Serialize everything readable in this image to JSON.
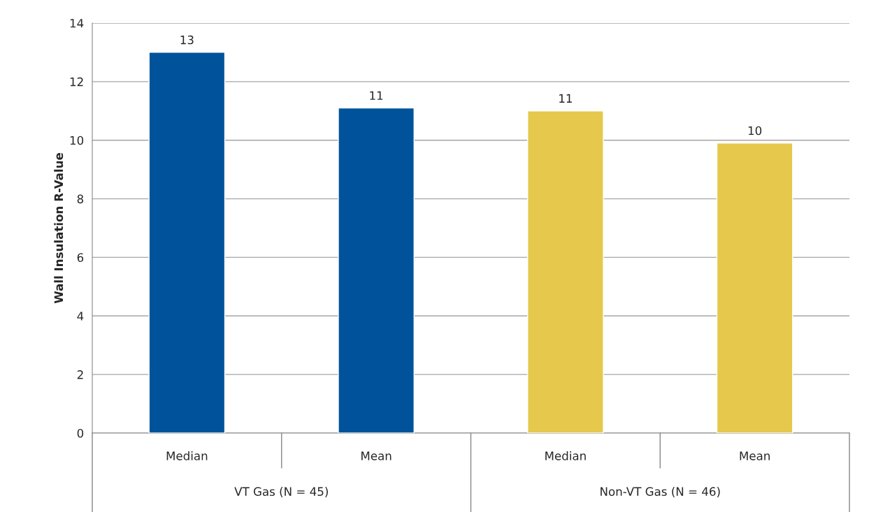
{
  "chart_data": {
    "type": "bar",
    "ylabel": "Wall Insulation R-Value",
    "categories": [
      "Median",
      "Mean",
      "Median",
      "Mean"
    ],
    "values": [
      13,
      11.1,
      11,
      9.9
    ],
    "colors": [
      "#00539b",
      "#00539b",
      "#e5c84c",
      "#e5c84c"
    ],
    "value_labels": [
      "13",
      "11",
      "11",
      "10"
    ],
    "annotations": [
      "VT Gas (N = 45)",
      "Non-VT Gas (N = 46)"
    ],
    "ylim": [
      0,
      14
    ],
    "yticks": [
      0,
      2,
      4,
      6,
      8,
      10,
      12,
      14
    ],
    "grid": "y",
    "legend": false
  }
}
